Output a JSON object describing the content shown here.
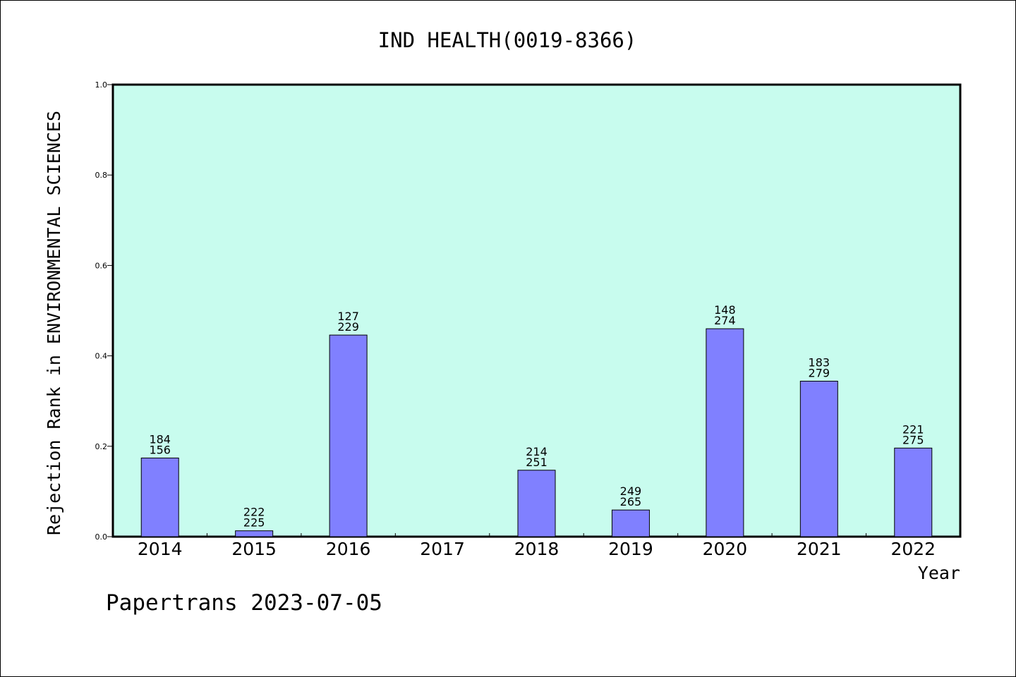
{
  "chart_data": {
    "type": "bar",
    "title": "IND HEALTH(0019-8366)",
    "xlabel": "Year",
    "ylabel": "Rejection Rank in ENVIRONMENTAL SCIENCES",
    "ylim": [
      0,
      1.0
    ],
    "yticks": [
      "0.0",
      "0.2",
      "0.4",
      "0.6",
      "0.8",
      "1.0"
    ],
    "categories": [
      "2014",
      "2015",
      "2016",
      "2017",
      "2018",
      "2019",
      "2020",
      "2021",
      "2022"
    ],
    "values": [
      0.174,
      0.013,
      0.446,
      null,
      0.147,
      0.059,
      0.46,
      0.344,
      0.196
    ],
    "labels_top": [
      "184",
      "222",
      "127",
      "",
      "214",
      "249",
      "148",
      "183",
      "221"
    ],
    "labels_bottom": [
      "156",
      "225",
      "229",
      "",
      "251",
      "265",
      "274",
      "279",
      "275"
    ],
    "grid": false,
    "colors": {
      "plot_background": "#c8fcee",
      "bar_fill": "#8080ff",
      "bar_stroke": "#000000",
      "axis": "#000000"
    }
  },
  "footer": "Papertrans 2023-07-05"
}
